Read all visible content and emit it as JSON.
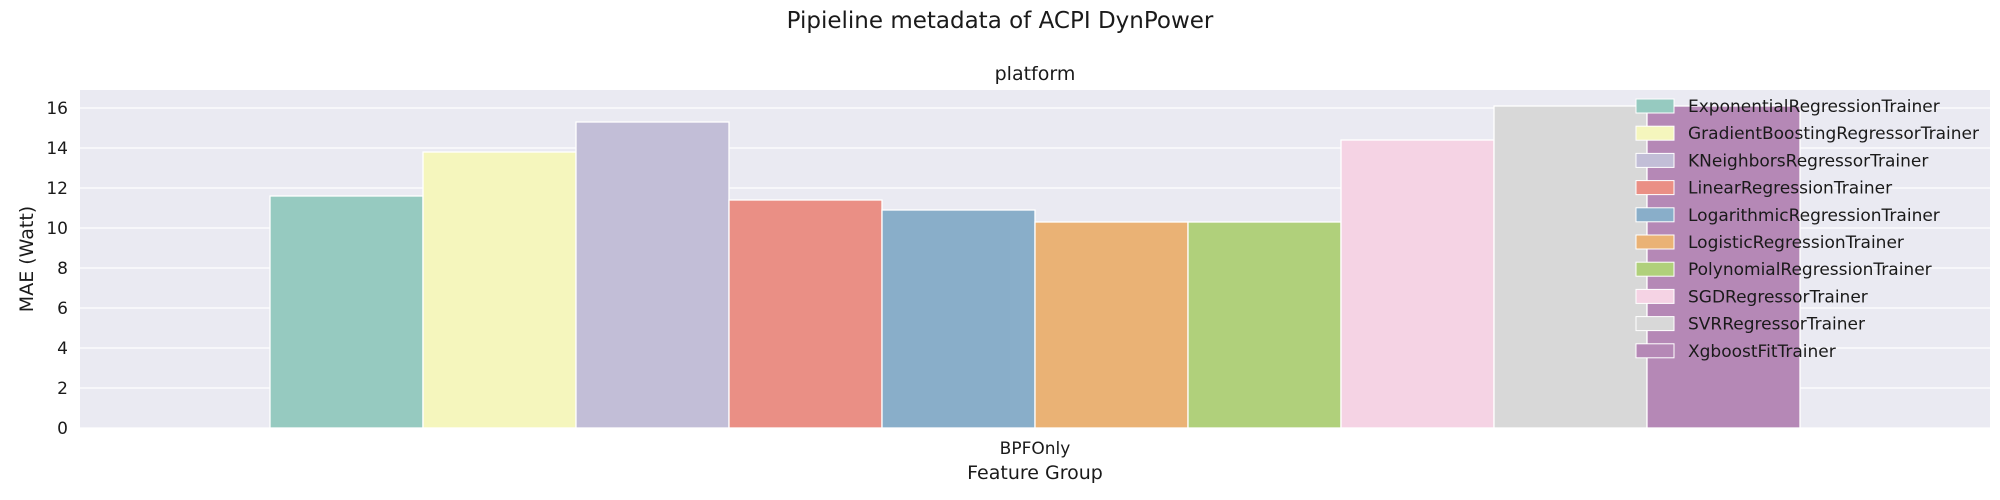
{
  "figure_title": "Pipieline metadata of ACPI DynPower",
  "chart_data": {
    "type": "bar",
    "title": "platform",
    "xlabel": "Feature Group",
    "ylabel": "MAE (Watt)",
    "categories": [
      "BPFOnly"
    ],
    "ylim": [
      0,
      16.9
    ],
    "yticks": [
      0,
      2,
      4,
      6,
      8,
      10,
      12,
      14,
      16
    ],
    "grid": true,
    "legend_position": "top-right",
    "background": "#eaeaf2",
    "series": [
      {
        "name": "ExponentialRegressionTrainer",
        "values": [
          11.6
        ],
        "color": "#96cac0"
      },
      {
        "name": "GradientBoostingRegressorTrainer",
        "values": [
          13.8
        ],
        "color": "#f5f6bd"
      },
      {
        "name": "KNeighborsRegressorTrainer",
        "values": [
          15.3
        ],
        "color": "#c2bed7"
      },
      {
        "name": "LinearRegressionTrainer",
        "values": [
          11.4
        ],
        "color": "#ea8f85"
      },
      {
        "name": "LogarithmicRegressionTrainer",
        "values": [
          10.9
        ],
        "color": "#89aec9"
      },
      {
        "name": "LogisticRegressionTrainer",
        "values": [
          10.3
        ],
        "color": "#eab275"
      },
      {
        "name": "PolynomialRegressionTrainer",
        "values": [
          10.3
        ],
        "color": "#b0d07b"
      },
      {
        "name": "SGDRegressorTrainer",
        "values": [
          14.4
        ],
        "color": "#f5d3e4"
      },
      {
        "name": "SVRRegressorTrainer",
        "values": [
          16.1
        ],
        "color": "#d8d8d8"
      },
      {
        "name": "XgboostFitTrainer",
        "values": [
          16.1
        ],
        "color": "#b588b6"
      }
    ]
  }
}
